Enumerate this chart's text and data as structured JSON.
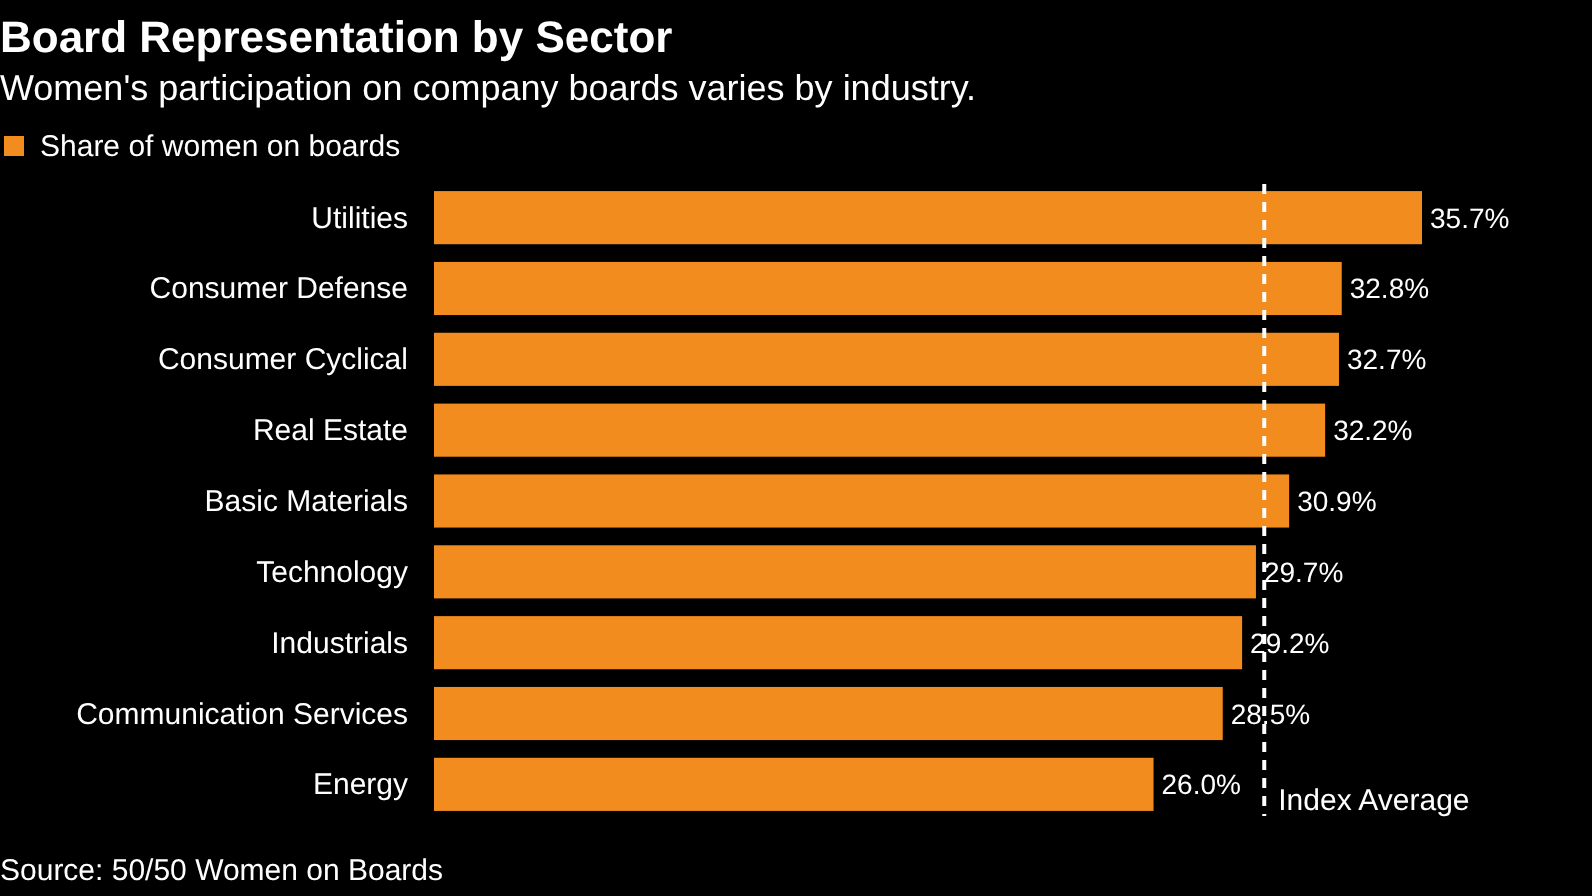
{
  "chart_data": {
    "type": "bar",
    "orientation": "horizontal",
    "title": "Board Representation by Sector",
    "subtitle": "Women's participation on company boards varies by industry.",
    "categories": [
      "Utilities",
      "Consumer Defense",
      "Consumer Cyclical",
      "Real Estate",
      "Basic Materials",
      "Technology",
      "Industrials",
      "Communication Services",
      "Energy"
    ],
    "series": [
      {
        "name": "Share of women on boards",
        "color": "#f28c1e",
        "values": [
          35.7,
          32.8,
          32.7,
          32.2,
          30.9,
          29.7,
          29.2,
          28.5,
          26.0
        ],
        "value_labels": [
          "35.7%",
          "32.8%",
          "32.7%",
          "32.2%",
          "30.9%",
          "29.7%",
          "29.2%",
          "28.5%",
          "26.0%"
        ]
      }
    ],
    "tick_labels": "y",
    "legend": "top left",
    "ref_lines": [
      {
        "axis": "x",
        "value": 30.0,
        "label": "Index Average",
        "color": "#ffffff",
        "line_style": "dashed"
      }
    ],
    "annotations": [
      "Source: 50/50 Women on Boards"
    ]
  }
}
